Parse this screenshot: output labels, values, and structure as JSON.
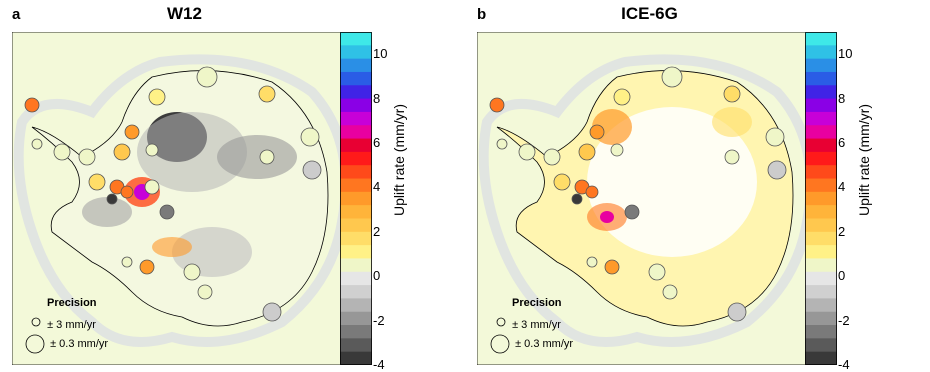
{
  "panels": [
    {
      "letter": "a",
      "title": "W12"
    },
    {
      "letter": "b",
      "title": "ICE-6G"
    }
  ],
  "precision_legend": {
    "title": "Precision",
    "small": "± 3 mm/yr",
    "large": "± 0.3 mm/yr"
  },
  "colorbar": {
    "label": "Uplift rate (mm/yr)",
    "ticks": [
      "10",
      "8",
      "6",
      "4",
      "2",
      "0",
      "-2",
      "-4"
    ],
    "colors_top_to_bottom": [
      "#3ee8e8",
      "#2fc1e6",
      "#2a8fe6",
      "#2a5ce6",
      "#4023e6",
      "#8a00e6",
      "#c700d8",
      "#e800a0",
      "#e80033",
      "#ff1a1a",
      "#ff4a1a",
      "#ff7620",
      "#ff9a2a",
      "#ffb43a",
      "#ffc84e",
      "#ffdd68",
      "#fff187",
      "#eff6c8",
      "#e6e6e6",
      "#d0d0d0",
      "#b4b4b4",
      "#979797",
      "#7a7a7a",
      "#5a5a5a",
      "#393939"
    ]
  },
  "icons": {
    "small_circle": "open-circle-small-icon",
    "large_circle": "open-circle-large-icon"
  }
}
